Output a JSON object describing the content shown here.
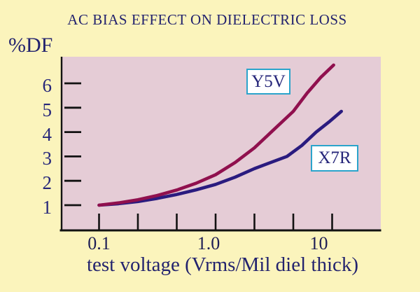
{
  "page": {
    "background": "#FBF4BC"
  },
  "chart_data": {
    "type": "line",
    "title": "AC BIAS EFFECT ON DIELECTRIC LOSS",
    "ylabel": "%DF",
    "xlabel": "test voltage (Vrms/Mil diel thick)",
    "x_scale": "log",
    "x_range": [
      0.05,
      26
    ],
    "y_range": [
      0,
      7.1
    ],
    "grid": false,
    "plot_background": "#E5CCD6",
    "axis_color": "#121212",
    "text_color": "#23236E",
    "legend_border_color": "#2BA4CB",
    "x_ticks": [
      {
        "value": 0.1,
        "label": "0.1"
      },
      {
        "value": 0.2154,
        "label": ""
      },
      {
        "value": 0.4642,
        "label": ""
      },
      {
        "value": 1.0,
        "label": "1.0"
      },
      {
        "value": 2.154,
        "label": ""
      },
      {
        "value": 4.642,
        "label": ""
      },
      {
        "value": 10.0,
        "label": "10"
      }
    ],
    "y_ticks": [
      {
        "value": 1,
        "label": "1"
      },
      {
        "value": 2,
        "label": "2"
      },
      {
        "value": 3,
        "label": "3"
      },
      {
        "value": 4,
        "label": "4"
      },
      {
        "value": 5,
        "label": "5"
      },
      {
        "value": 6,
        "label": "6"
      }
    ],
    "series": [
      {
        "name": "Y5V",
        "color": "#90104E",
        "points": [
          [
            0.1,
            1.0
          ],
          [
            0.15,
            1.1
          ],
          [
            0.215,
            1.22
          ],
          [
            0.316,
            1.4
          ],
          [
            0.464,
            1.62
          ],
          [
            0.68,
            1.9
          ],
          [
            1.0,
            2.25
          ],
          [
            1.47,
            2.75
          ],
          [
            2.15,
            3.35
          ],
          [
            3.16,
            4.1
          ],
          [
            4.64,
            4.85
          ],
          [
            6.1,
            5.6
          ],
          [
            8.0,
            6.25
          ],
          [
            10.3,
            6.75
          ]
        ]
      },
      {
        "name": "X7R",
        "color": "#2A1B7F",
        "points": [
          [
            0.1,
            1.0
          ],
          [
            0.147,
            1.06
          ],
          [
            0.215,
            1.15
          ],
          [
            0.316,
            1.28
          ],
          [
            0.464,
            1.44
          ],
          [
            0.68,
            1.63
          ],
          [
            1.0,
            1.85
          ],
          [
            1.47,
            2.15
          ],
          [
            2.15,
            2.5
          ],
          [
            3.16,
            2.8
          ],
          [
            4.1,
            3.0
          ],
          [
            5.5,
            3.45
          ],
          [
            7.3,
            4.0
          ],
          [
            9.6,
            4.45
          ],
          [
            12.0,
            4.85
          ]
        ]
      }
    ]
  }
}
